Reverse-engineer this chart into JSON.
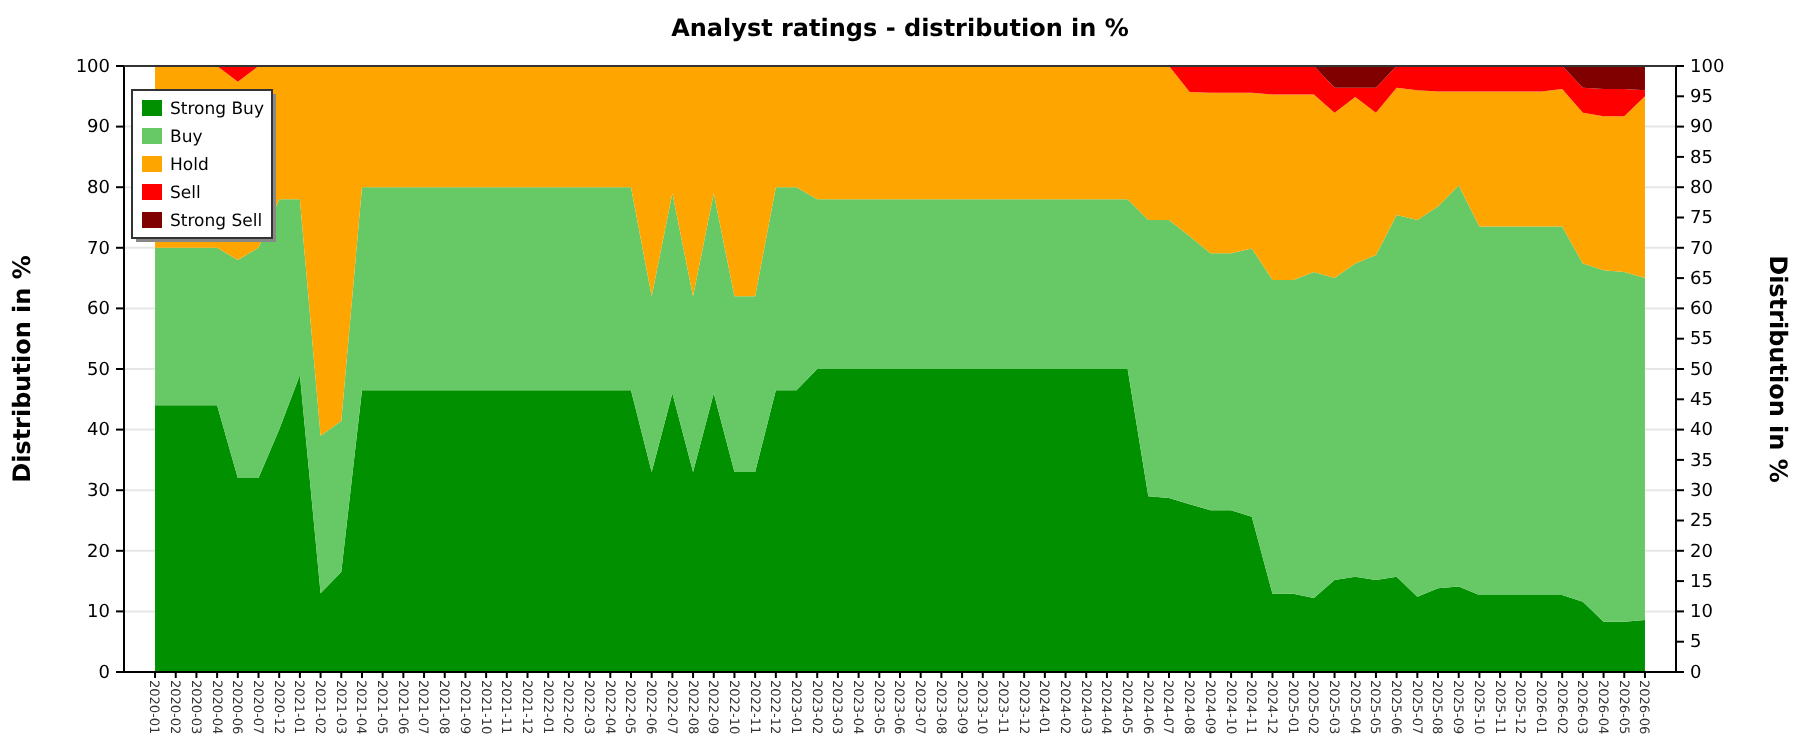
{
  "chart_data": {
    "type": "area",
    "stacked": true,
    "title": "Analyst ratings - distribution in %",
    "ylabel": "Distribution in %",
    "y2label": "Distribution in %",
    "categories": [
      "2020-01",
      "2020-02",
      "2020-03",
      "2020-04",
      "2020-06",
      "2020-07",
      "2020-12",
      "2021-01",
      "2021-02",
      "2021-03",
      "2021-04",
      "2021-05",
      "2021-06",
      "2021-07",
      "2021-08",
      "2021-09",
      "2021-10",
      "2021-11",
      "2021-12",
      "2022-01",
      "2022-02",
      "2022-03",
      "2022-04",
      "2022-05",
      "2022-06",
      "2022-07",
      "2022-08",
      "2022-09",
      "2022-10",
      "2022-11",
      "2022-12",
      "2023-01",
      "2023-02",
      "2023-03",
      "2023-04",
      "2023-05",
      "2023-06",
      "2023-07",
      "2023-08",
      "2023-09",
      "2023-10",
      "2023-11",
      "2023-12",
      "2024-01",
      "2024-02",
      "2024-03",
      "2024-04",
      "2024-05",
      "2024-06",
      "2024-07",
      "2024-08",
      "2024-09",
      "2024-10",
      "2024-11",
      "2024-12",
      "2025-01",
      "2025-02",
      "2025-03",
      "2025-04",
      "2025-05",
      "2025-06",
      "2025-07",
      "2025-08",
      "2025-09",
      "2025-10",
      "2025-11",
      "2025-12",
      "2026-01",
      "2026-02",
      "2026-03",
      "2026-04",
      "2026-05",
      "2026-06"
    ],
    "series": [
      {
        "name": "Strong Buy",
        "color": "#009000",
        "values": [
          44,
          44,
          44,
          44,
          32,
          32,
          40,
          49,
          13,
          16.5,
          46.5,
          46.5,
          46.5,
          46.5,
          46.5,
          46.5,
          46.5,
          46.5,
          46.5,
          46.5,
          46.5,
          46.5,
          46.5,
          46.5,
          33,
          46,
          33,
          46,
          33,
          33,
          46.5,
          46.5,
          50,
          50,
          50,
          50,
          50,
          50,
          50,
          50,
          50,
          50,
          50,
          50,
          50,
          50,
          50,
          50,
          29,
          28.7,
          27.7,
          26.7,
          26.7,
          25.6,
          12.9,
          12.9,
          12.2,
          15.2,
          15.7,
          15.2,
          15.7,
          12.4,
          13.8,
          14.1,
          12.7,
          12.7,
          12.7,
          12.7,
          12.7,
          11.6,
          8.3,
          8.3,
          8.6
        ]
      },
      {
        "name": "Buy",
        "color": "#66c966",
        "values": [
          26,
          26,
          26,
          26,
          36,
          38,
          38,
          29,
          26,
          24.9,
          33.5,
          33.5,
          33.5,
          33.5,
          33.5,
          33.5,
          33.5,
          33.5,
          33.5,
          33.5,
          33.5,
          33.5,
          33.5,
          33.5,
          29,
          33,
          29,
          33,
          29,
          29,
          33.5,
          33.5,
          28,
          28,
          28,
          28,
          28,
          28,
          28,
          28,
          28,
          28,
          28,
          28,
          28,
          28,
          28,
          28,
          45.6,
          45.9,
          44.2,
          42.4,
          42.4,
          44.3,
          51.8,
          51.8,
          53.8,
          49.8,
          51.7,
          53.6,
          59.7,
          62.2,
          63,
          66.2,
          60.8,
          60.8,
          60.8,
          60.8,
          60.8,
          55.8,
          58,
          57.7,
          56.4
        ]
      },
      {
        "name": "Hold",
        "color": "#ffa500",
        "values": [
          30,
          30,
          30,
          30,
          29.4,
          30,
          22,
          22,
          61,
          58.6,
          20,
          20,
          20,
          20,
          20,
          20,
          20,
          20,
          20,
          20,
          20,
          20,
          20,
          20,
          38,
          21,
          38,
          21,
          38,
          38,
          20,
          20,
          22,
          22,
          22,
          22,
          22,
          22,
          22,
          22,
          22,
          22,
          22,
          22,
          22,
          22,
          22,
          22,
          25.4,
          25.4,
          23.8,
          26.5,
          26.5,
          25.7,
          30.6,
          30.6,
          29.3,
          27.3,
          27.5,
          23.5,
          21,
          21.4,
          19,
          15.5,
          22.3,
          22.3,
          22.3,
          22.3,
          22.7,
          24.9,
          25.4,
          25.7,
          30
        ]
      },
      {
        "name": "Sell",
        "color": "#ff0000",
        "values": [
          0,
          0,
          0,
          0,
          2.6,
          0,
          0,
          0,
          0,
          0,
          0,
          0,
          0,
          0,
          0,
          0,
          0,
          0,
          0,
          0,
          0,
          0,
          0,
          0,
          0,
          0,
          0,
          0,
          0,
          0,
          0,
          0,
          0,
          0,
          0,
          0,
          0,
          0,
          0,
          0,
          0,
          0,
          0,
          0,
          0,
          0,
          0,
          0,
          0,
          0,
          4.3,
          4.4,
          4.4,
          4.4,
          4.7,
          4.7,
          4.7,
          4.1,
          1.5,
          4.1,
          3.6,
          4,
          4.2,
          4.2,
          4.2,
          4.2,
          4.2,
          4.2,
          3.8,
          4.1,
          4.5,
          4.5,
          1
        ]
      },
      {
        "name": "Strong Sell",
        "color": "#800000",
        "values": [
          0,
          0,
          0,
          0,
          0,
          0,
          0,
          0,
          0,
          0,
          0,
          0,
          0,
          0,
          0,
          0,
          0,
          0,
          0,
          0,
          0,
          0,
          0,
          0,
          0,
          0,
          0,
          0,
          0,
          0,
          0,
          0,
          0,
          0,
          0,
          0,
          0,
          0,
          0,
          0,
          0,
          0,
          0,
          0,
          0,
          0,
          0,
          0,
          0,
          0,
          0,
          0,
          0,
          0,
          0,
          0,
          0,
          3.6,
          3.6,
          3.6,
          0,
          0,
          0,
          0,
          0,
          0,
          0,
          0,
          0,
          3.6,
          3.8,
          3.8,
          4
        ]
      }
    ],
    "ylim": [
      0,
      100
    ],
    "yticks": [
      0,
      10,
      20,
      30,
      40,
      50,
      60,
      70,
      80,
      90,
      100
    ],
    "y2lim": [
      0,
      100
    ],
    "y2ticks": [
      0,
      5,
      10,
      15,
      20,
      25,
      30,
      35,
      40,
      45,
      50,
      55,
      60,
      65,
      70,
      75,
      80,
      85,
      90,
      95,
      100
    ],
    "grid": "y",
    "legend": "top left"
  }
}
